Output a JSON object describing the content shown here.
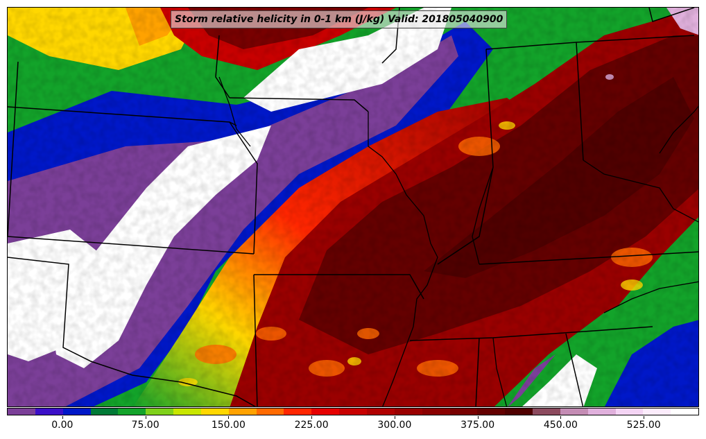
{
  "title": "Storm relative helicity in 0-1 km (J/kg) Valid: 201805040900",
  "colorbar": {
    "min": -50,
    "max": 575,
    "colors": [
      "#7b3f98",
      "#3b0fc8",
      "#0018c8",
      "#007a36",
      "#13a32a",
      "#7fd11a",
      "#c8e600",
      "#ffd700",
      "#ffa200",
      "#ff6a00",
      "#ff2600",
      "#e60000",
      "#c80000",
      "#b00000",
      "#9a0000",
      "#8a0000",
      "#780000",
      "#640000",
      "#500000",
      "#8c4a5e",
      "#c48cb4",
      "#e0b0dc",
      "#f4d4f4",
      "#fcecfc",
      "#ffffff"
    ],
    "tick_labels": [
      "0.00",
      "75.00",
      "150.00",
      "225.00",
      "300.00",
      "375.00",
      "450.00",
      "525.00"
    ],
    "tick_values": [
      0,
      75,
      150,
      225,
      300,
      375,
      450,
      525
    ]
  }
}
